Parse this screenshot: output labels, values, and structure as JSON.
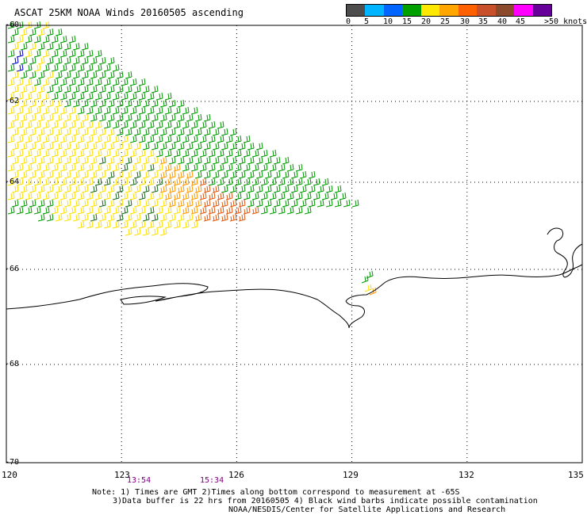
{
  "title": "ASCAT 25KM NOAA Winds 20160505 ascending",
  "legend": {
    "labels": [
      "0",
      "5",
      "10",
      "15",
      "20",
      "25",
      "30",
      "35",
      "40",
      "45",
      ">50 knots"
    ],
    "colors": [
      "#4d4d4d",
      "#00b4ff",
      "#0066ff",
      "#00a000",
      "#ffe800",
      "#ffa600",
      "#ff6000",
      "#c8502a",
      "#8b4a2b",
      "#ff00ff",
      "#660099"
    ]
  },
  "lat_labels": [
    "-60",
    "-62",
    "-64",
    "-66",
    "-68",
    "-70"
  ],
  "lon_labels": [
    "120",
    "123",
    "126",
    "129",
    "132",
    "135"
  ],
  "times": [
    "13:54",
    "15:34"
  ],
  "notes": {
    "line1": "Note: 1) Times are GMT 2)Times along bottom correspond to measurement at -65S",
    "line2": "3)Data buffer is 22 hrs from 20160505 4) Black wind barbs indicate possible contamination",
    "line3": "NOAA/NESDIS/Center for Satellite Applications and Research"
  },
  "map": {
    "lon_range": [
      120,
      135
    ],
    "lat_range": [
      -60,
      -70
    ],
    "swath_corners": [
      [
        120,
        -60.0
      ],
      [
        120.9,
        -60.0
      ],
      [
        126.0,
        -62.9
      ],
      [
        129.3,
        -64.6
      ],
      [
        126.0,
        -64.9
      ],
      [
        123.5,
        -65.3
      ],
      [
        120,
        -64.8
      ]
    ],
    "barb_colors": {
      "calm": "#1a6b1a",
      "light": "#009a00",
      "moderate": "#ffe000",
      "fresh": "#ff9a00",
      "strong": "#e2580f",
      "blue": "#0000cc"
    }
  }
}
